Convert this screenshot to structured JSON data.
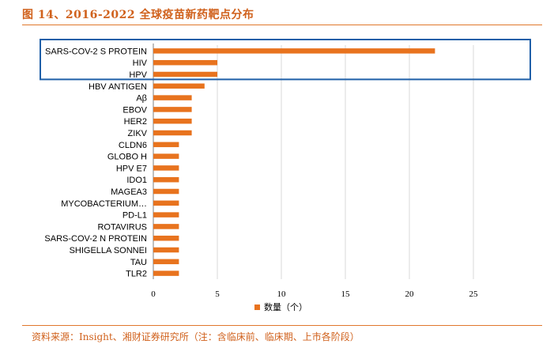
{
  "title": "图 14、2016-2022 全球疫苗新药靶点分布",
  "source": "资料来源：Insight、湘财证券研究所（注：含临床前、临床期、上市各阶段）",
  "colors": {
    "bar": "#e8731e",
    "accent": "#d0611c",
    "highlight_box": "#1f5fa8",
    "grid": "#d9d9d9"
  },
  "chart_data": {
    "type": "bar",
    "orientation": "horizontal",
    "categories": [
      "SARS-COV-2 S PROTEIN",
      "HIV",
      "HPV",
      "HBV ANTIGEN",
      "Aβ",
      "EBOV",
      "HER2",
      "ZIKV",
      "CLDN6",
      "GLOBO H",
      "HPV E7",
      "IDO1",
      "MAGEA3",
      "MYCOBACTERIUM…",
      "PD-L1",
      "ROTAVIRUS",
      "SARS-COV-2 N PROTEIN",
      "SHIGELLA SONNEI",
      "TAU",
      "TLR2"
    ],
    "values": [
      22,
      5,
      5,
      4,
      3,
      3,
      3,
      3,
      2,
      2,
      2,
      2,
      2,
      2,
      2,
      2,
      2,
      2,
      2,
      2
    ],
    "xlim": [
      0,
      25
    ],
    "xticks": [
      "0",
      "5",
      "10",
      "15",
      "20",
      "25"
    ],
    "grid": true,
    "legend": "bottom",
    "legend_label": "数量（个）",
    "highlighted_categories": [
      "SARS-COV-2 S PROTEIN",
      "HIV",
      "HPV"
    ]
  }
}
